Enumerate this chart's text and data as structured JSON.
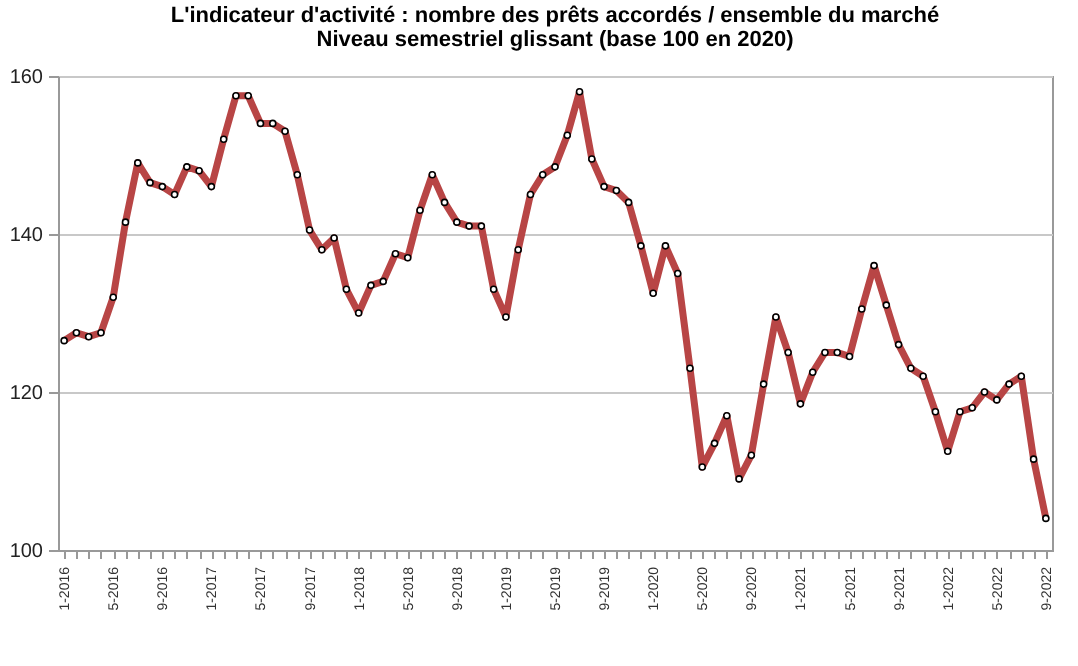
{
  "chart_data": {
    "type": "line",
    "title": "L'indicateur d'activité : nombre des prêts accordés / ensemble du marché",
    "subtitle": "Niveau semestriel glissant (base 100 en 2020)",
    "categories": [
      "1-2016",
      null,
      null,
      null,
      "5-2016",
      null,
      null,
      null,
      "9-2016",
      null,
      null,
      null,
      "1-2017",
      null,
      null,
      null,
      "5-2017",
      null,
      null,
      null,
      "9-2017",
      null,
      null,
      null,
      "1-2018",
      null,
      null,
      null,
      "5-2018",
      null,
      null,
      null,
      "9-2018",
      null,
      null,
      null,
      "1-2019",
      null,
      null,
      null,
      "5-2019",
      null,
      null,
      null,
      "9-2019",
      null,
      null,
      null,
      "1-2020",
      null,
      null,
      null,
      "5-2020",
      null,
      null,
      null,
      "9-2020",
      null,
      null,
      null,
      "1-2021",
      null,
      null,
      null,
      "5-2021",
      null,
      null,
      null,
      "9-2021",
      null,
      null,
      null,
      "1-2022",
      null,
      null,
      null,
      "5-2022",
      null,
      null,
      null,
      "9-2022"
    ],
    "series": [
      {
        "color": "#b84545",
        "values": [
          126.5,
          127.5,
          127,
          127.5,
          132,
          141.5,
          149,
          146.5,
          146,
          145,
          148.5,
          148,
          146,
          152,
          157.5,
          157.5,
          154,
          154,
          153,
          147.5,
          140.5,
          138,
          139.5,
          133,
          130,
          133.5,
          134,
          137.5,
          137,
          143,
          147.5,
          144,
          141.5,
          141,
          141,
          133,
          129.5,
          138,
          145,
          147.5,
          148.5,
          152.5,
          158,
          149.5,
          146,
          145.5,
          144,
          138.5,
          132.5,
          138.5,
          135,
          123,
          110.5,
          113.5,
          117,
          109,
          112,
          121,
          129.5,
          125,
          118.5,
          122.5,
          125,
          125,
          124.5,
          130.5,
          136,
          131,
          126,
          123,
          122,
          117.5,
          112.5,
          117.5,
          118,
          120,
          119,
          121,
          122,
          111.5,
          104
        ]
      }
    ],
    "ylim": [
      100,
      160
    ],
    "yticks": [
      100,
      120,
      140,
      160
    ],
    "grid": "y",
    "marker": "circle"
  }
}
